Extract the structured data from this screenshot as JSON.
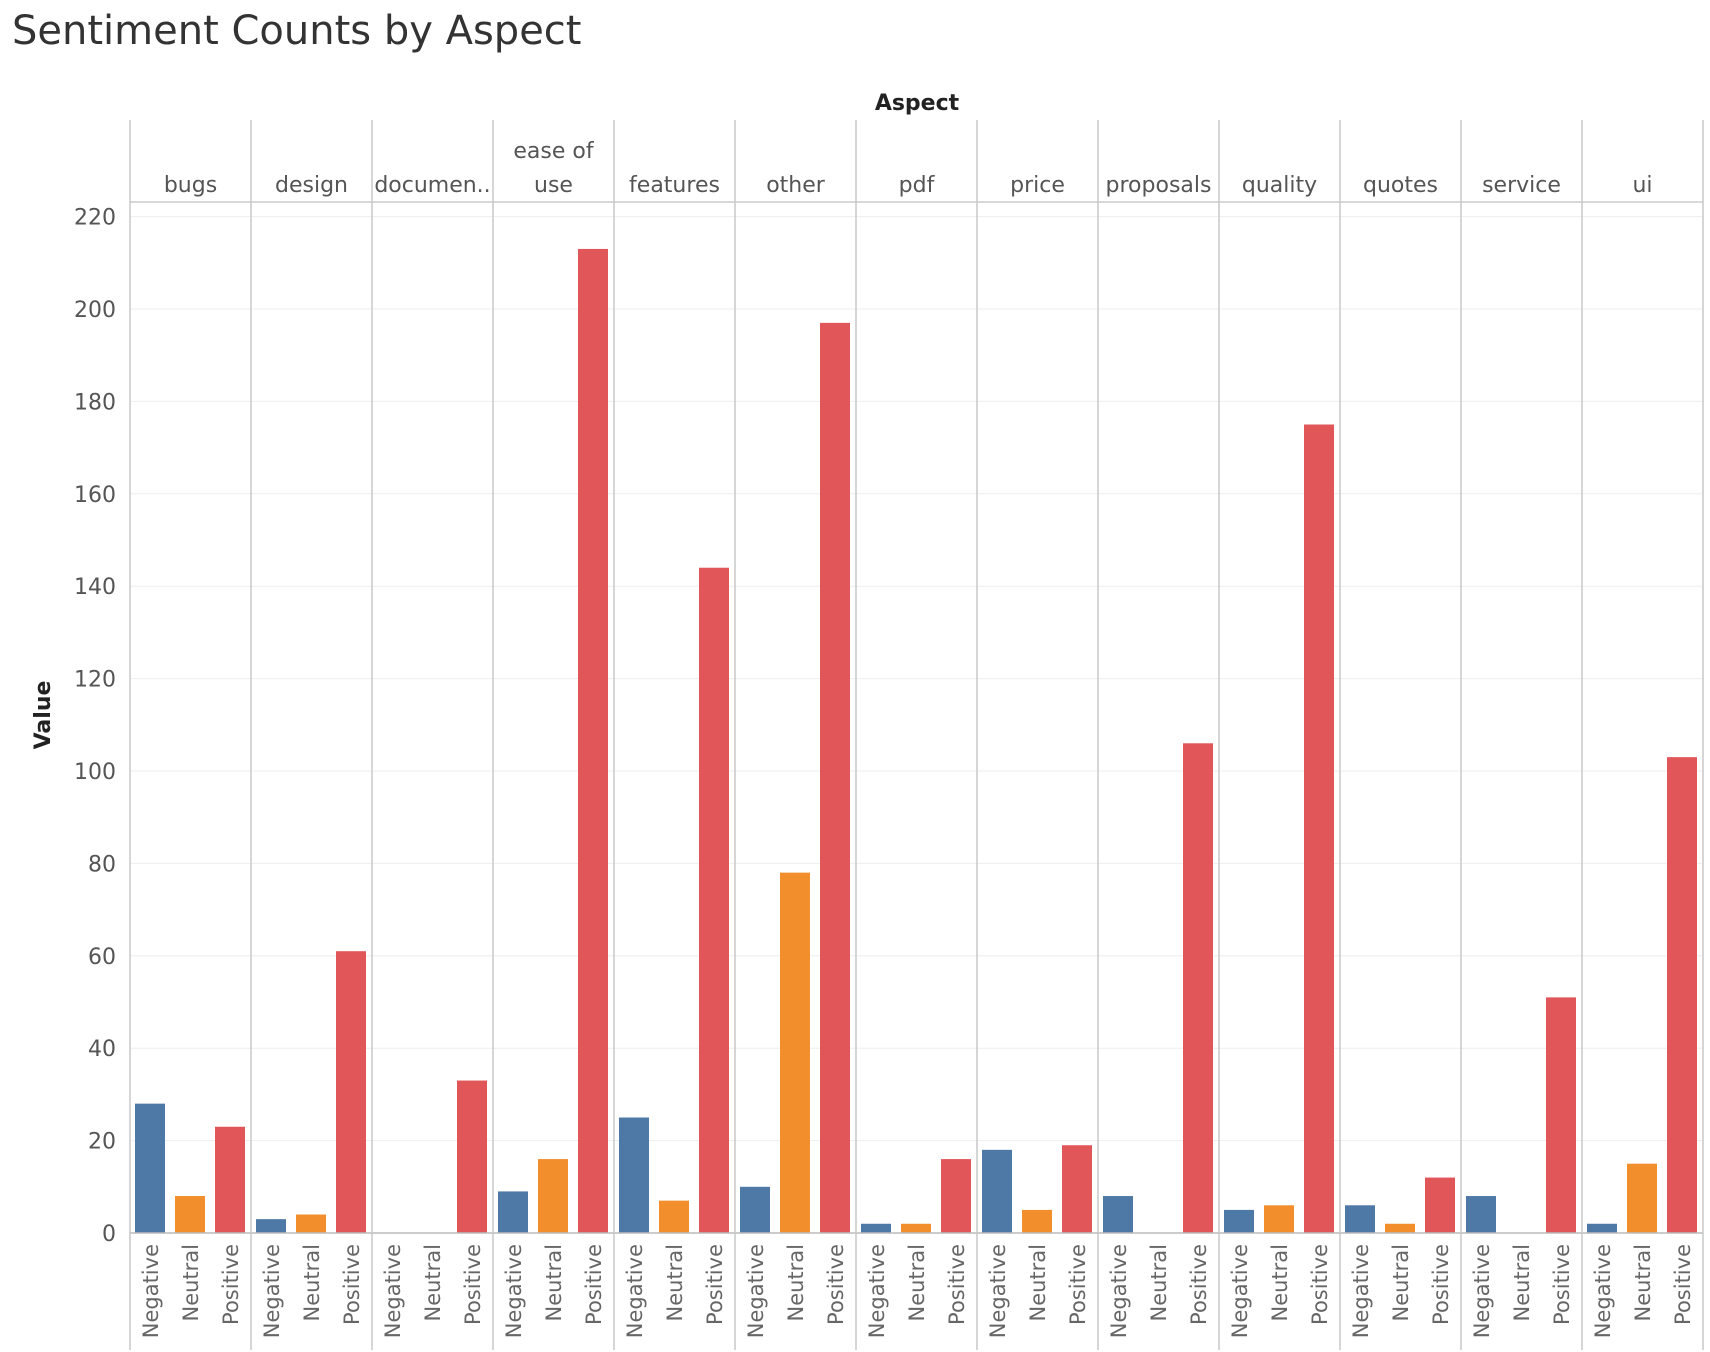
{
  "chart_data": {
    "type": "bar",
    "title": "Sentiment Counts by Aspect",
    "column_header": "Aspect",
    "ylabel": "Value",
    "ylim": [
      0,
      225
    ],
    "yticks": [
      0,
      20,
      40,
      60,
      80,
      100,
      120,
      140,
      160,
      180,
      200,
      220
    ],
    "sentiments": [
      "Negative",
      "Neutral",
      "Positive"
    ],
    "colors": {
      "Negative": "#4e79a7",
      "Neutral": "#f28e2b",
      "Positive": "#e15759"
    },
    "aspects": [
      {
        "label": [
          "bugs"
        ],
        "values": [
          28,
          8,
          23
        ]
      },
      {
        "label": [
          "design"
        ],
        "values": [
          3,
          4,
          61
        ]
      },
      {
        "label": [
          "documen.."
        ],
        "values": [
          null,
          null,
          33
        ]
      },
      {
        "label": [
          "ease of",
          "use"
        ],
        "values": [
          9,
          16,
          213
        ]
      },
      {
        "label": [
          "features"
        ],
        "values": [
          25,
          7,
          144
        ]
      },
      {
        "label": [
          "other"
        ],
        "values": [
          10,
          78,
          197
        ]
      },
      {
        "label": [
          "pdf"
        ],
        "values": [
          2,
          2,
          16
        ]
      },
      {
        "label": [
          "price"
        ],
        "values": [
          18,
          5,
          19
        ]
      },
      {
        "label": [
          "proposals"
        ],
        "values": [
          8,
          null,
          106
        ]
      },
      {
        "label": [
          "quality"
        ],
        "values": [
          5,
          6,
          175
        ]
      },
      {
        "label": [
          "quotes"
        ],
        "values": [
          6,
          2,
          12
        ]
      },
      {
        "label": [
          "service"
        ],
        "values": [
          8,
          null,
          51
        ]
      },
      {
        "label": [
          "ui"
        ],
        "values": [
          2,
          15,
          103
        ]
      }
    ]
  }
}
